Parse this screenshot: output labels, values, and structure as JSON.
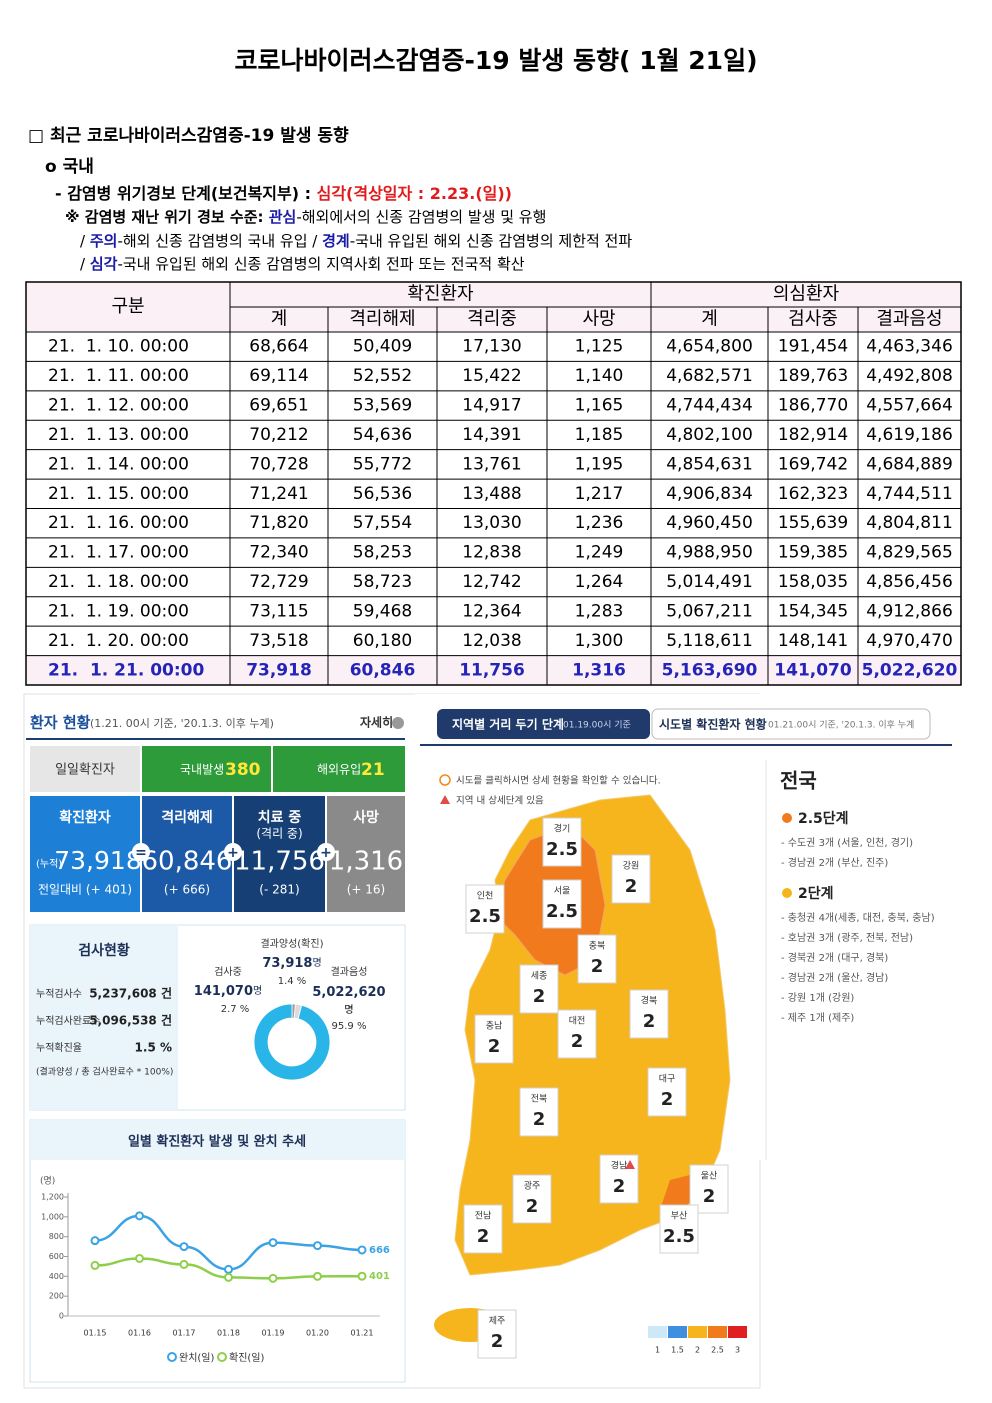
{
  "header": {
    "title": "코로나바이러스감염증-19 발생 동향( 1월 21일)"
  },
  "section": {
    "heading": "□ 최근 코로나바이러스감염증-19 발생 동향",
    "subheading": "o 국내",
    "alert_label": "- 감염병 위기경보 단계(보건복지부) : ",
    "alert_level": "심각(격상일자 : 2.23.(일))",
    "lines": [
      [
        {
          "text": "※ 감염병 재난 위기 경보 수준: "
        },
        {
          "text": "관심",
          "color": "#1a1aa6"
        },
        {
          "text": "-해외에서의 신종 감염병의 발생 및 유행"
        }
      ],
      [
        {
          "text": "/ "
        },
        {
          "text": "주의",
          "color": "#1a1aa6"
        },
        {
          "text": "-해외 신종 감염병의 국내 유입 / "
        },
        {
          "text": "경계",
          "color": "#1a1aa6"
        },
        {
          "text": "-국내 유입된 해외 신종 감염병의 제한적 전파"
        }
      ],
      [
        {
          "text": "/ "
        },
        {
          "text": "심각",
          "color": "#1a1aa6"
        },
        {
          "text": "-국내 유입된 해외 신종 감염병의 지역사회 전파 또는 전국적 확산"
        }
      ]
    ]
  },
  "table": {
    "group_label": "구분",
    "groups": [
      "확진환자",
      "의심환자"
    ],
    "columns": [
      "계",
      "격리해제",
      "격리중",
      "사망",
      "계",
      "검사중",
      "결과음성"
    ],
    "rows": [
      [
        "21.  1. 10. 00:00",
        "68,664",
        "50,409",
        "17,130",
        "1,125",
        "4,654,800",
        "191,454",
        "4,463,346"
      ],
      [
        "21.  1. 11. 00:00",
        "69,114",
        "52,552",
        "15,422",
        "1,140",
        "4,682,571",
        "189,763",
        "4,492,808"
      ],
      [
        "21.  1. 12. 00:00",
        "69,651",
        "53,569",
        "14,917",
        "1,165",
        "4,744,434",
        "186,770",
        "4,557,664"
      ],
      [
        "21.  1. 13. 00:00",
        "70,212",
        "54,636",
        "14,391",
        "1,185",
        "4,802,100",
        "182,914",
        "4,619,186"
      ],
      [
        "21.  1. 14. 00:00",
        "70,728",
        "55,772",
        "13,761",
        "1,195",
        "4,854,631",
        "169,742",
        "4,684,889"
      ],
      [
        "21.  1. 15. 00:00",
        "71,241",
        "56,536",
        "13,488",
        "1,217",
        "4,906,834",
        "162,323",
        "4,744,511"
      ],
      [
        "21.  1. 16. 00:00",
        "71,820",
        "57,554",
        "13,030",
        "1,236",
        "4,960,450",
        "155,639",
        "4,804,811"
      ],
      [
        "21.  1. 17. 00:00",
        "72,340",
        "58,253",
        "12,838",
        "1,249",
        "4,988,950",
        "159,385",
        "4,829,565"
      ],
      [
        "21.  1. 18. 00:00",
        "72,729",
        "58,723",
        "12,742",
        "1,264",
        "5,014,491",
        "158,035",
        "4,856,456"
      ],
      [
        "21.  1. 19. 00:00",
        "73,115",
        "59,468",
        "12,364",
        "1,283",
        "5,067,211",
        "154,345",
        "4,912,866"
      ],
      [
        "21.  1. 20. 00:00",
        "73,518",
        "60,180",
        "12,038",
        "1,300",
        "5,118,611",
        "148,141",
        "4,970,470"
      ],
      [
        "21.  1. 21. 00:00",
        "73,918",
        "60,846",
        "11,756",
        "1,316",
        "5,163,690",
        "141,070",
        "5,022,620"
      ]
    ]
  },
  "patient_status": {
    "title": "환자 현황",
    "basis": "(1.21. 00시 기준, '20.1.3. 이후 누계)",
    "more": "자세히",
    "daily_label": "일일확진자",
    "domestic_label": "국내발생",
    "domestic": "380",
    "overseas_label": "해외유입",
    "overseas": "21",
    "cards": [
      {
        "title": "확진환자",
        "prefix": "(누적)",
        "value": "73,918",
        "change": "전일대비 (+ 401)"
      },
      {
        "title": "격리해제",
        "value": "60,846",
        "change": "(+ 666)"
      },
      {
        "title": "치료 중",
        "subtitle": "(격리 중)",
        "value": "11,756",
        "change": "(- 281)"
      },
      {
        "title": "사망",
        "value": "1,316",
        "change": "(+ 16)"
      }
    ],
    "operators": [
      "=",
      "+",
      "+"
    ]
  },
  "testing": {
    "title": "검사현황",
    "items": [
      {
        "label": "누적검사수",
        "value": "5,237,608 건"
      },
      {
        "label": "누적검사완료수",
        "value": "5,096,538 건"
      },
      {
        "label": "누적확진율",
        "value": "1.5 %"
      }
    ],
    "note": "(결과양성 / 총 검사완료수 * 100%)"
  },
  "chart_data": [
    {
      "type": "line",
      "title": "일별 확진환자 발생 및 완치 추세",
      "y_unit": "(명)",
      "categories": [
        "01.15",
        "01.16",
        "01.17",
        "01.18",
        "01.19",
        "01.20",
        "01.21"
      ],
      "series": [
        {
          "name": "완치(일)",
          "color": "#3aa3e3",
          "values": [
            760,
            1010,
            700,
            470,
            740,
            710,
            666
          ],
          "value_labels": [
            null,
            null,
            null,
            null,
            null,
            null,
            "666"
          ]
        },
        {
          "name": "확진(일)",
          "color": "#8dcf4a",
          "values": [
            510,
            580,
            520,
            390,
            380,
            400,
            401
          ],
          "value_labels": [
            null,
            null,
            null,
            null,
            null,
            null,
            "401"
          ]
        }
      ],
      "ylim": [
        0,
        1200
      ],
      "yticks": [
        0,
        200,
        400,
        600,
        800,
        {
          "value": 1000,
          "label": "1,000"
        },
        {
          "value": 1200,
          "label": "1,200"
        }
      ]
    },
    {
      "type": "pie",
      "categories": [
        "결과양성(확진)",
        "검사중",
        "결과음성"
      ],
      "values": [
        73918,
        141070,
        5022620
      ],
      "value_labels": [
        "73,918",
        "141,070",
        "5,022,620"
      ],
      "percent_labels": [
        "1.4 %",
        "2.7 %",
        "95.9 %"
      ],
      "unit": "명",
      "colors": [
        "#9a9a9a",
        "#dcdcdc",
        "#29b5e8"
      ]
    }
  ],
  "regional_distancing": {
    "tab": "지역별 거리 두기 단계",
    "tab_basis": "01.19.00시 기준",
    "tab2": "시도별 확진환자 현황",
    "tab2_basis": "01.21.00시 기준, '20.1.3. 이후 누계",
    "hint": "시도를 클릭하시면 상세 현황을 확인할 수 있습니다.",
    "hint2": "지역 내 상세단계 있음",
    "regions": [
      {
        "name": "경기",
        "level": 2.5
      },
      {
        "name": "서울",
        "level": 2.5
      },
      {
        "name": "인천",
        "level": 2.5
      },
      {
        "name": "강원",
        "level": 2
      },
      {
        "name": "충북",
        "level": 2
      },
      {
        "name": "세종",
        "level": 2
      },
      {
        "name": "충남",
        "level": 2
      },
      {
        "name": "대전",
        "level": 2
      },
      {
        "name": "경북",
        "level": 2
      },
      {
        "name": "대구",
        "level": 2
      },
      {
        "name": "전북",
        "level": 2
      },
      {
        "name": "경남",
        "level": 2
      },
      {
        "name": "울산",
        "level": 2
      },
      {
        "name": "광주",
        "level": 2
      },
      {
        "name": "부산",
        "level": 2.5
      },
      {
        "name": "전남",
        "level": 2
      },
      {
        "name": "제주",
        "level": 2
      }
    ],
    "summary": {
      "title": "전국",
      "groups": [
        {
          "level": "2.5단계",
          "color": "#f07a1c",
          "items": [
            "- 수도권 3개 (서울, 인천, 경기)",
            "- 경남권 2개 (부산, 진주)"
          ]
        },
        {
          "level": "2단계",
          "color": "#f6b51d",
          "items": [
            "- 충청권 4개(세종, 대전, 충북, 충남)",
            "- 호남권 3개 (광주, 전북, 전남)",
            "- 경북권 2개 (대구, 경북)",
            "- 경남권 2개 (울산, 경남)",
            "- 강원 1개 (강원)",
            "- 제주 1개 (제주)"
          ]
        }
      ]
    },
    "scale": [
      1,
      1.5,
      2,
      2.5,
      3
    ],
    "scale_colors": [
      "#cde9f8",
      "#3f8fe0",
      "#f6b51d",
      "#f07a1c",
      "#e02020"
    ]
  }
}
